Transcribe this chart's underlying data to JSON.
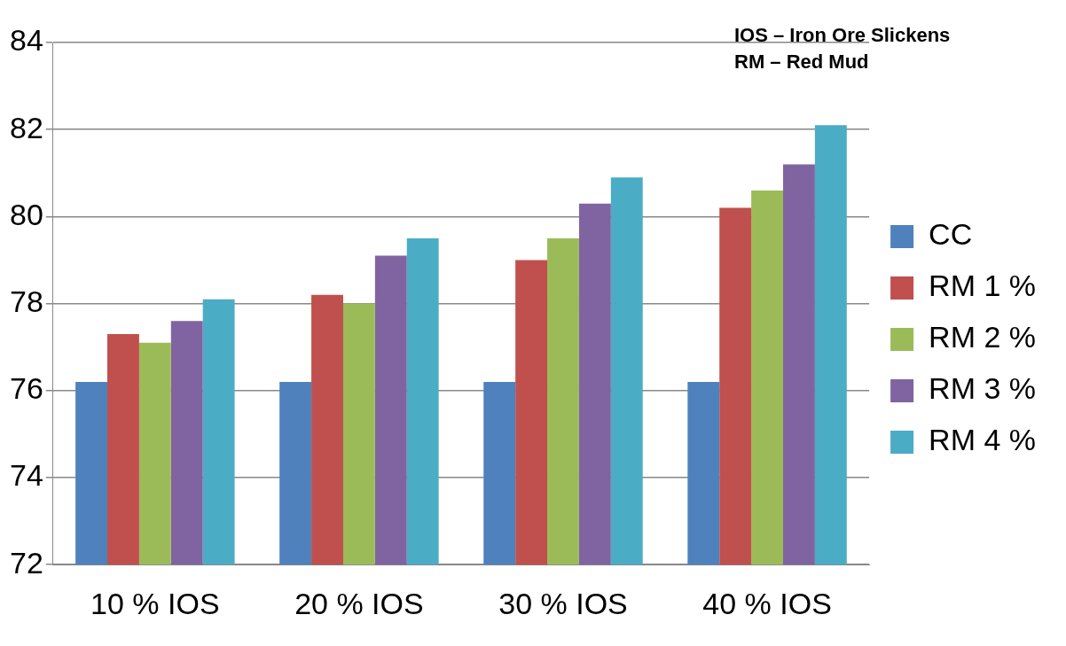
{
  "chart_data": {
    "type": "bar",
    "categories": [
      "10 % IOS",
      "20 % IOS",
      "30 % IOS",
      "40 % IOS"
    ],
    "series": [
      {
        "name": "CC",
        "color": "#4f81bd",
        "values": [
          76.2,
          76.2,
          76.2,
          76.2
        ]
      },
      {
        "name": "RM 1 %",
        "color": "#c0504d",
        "values": [
          77.3,
          78.2,
          79.0,
          80.2
        ]
      },
      {
        "name": "RM 2 %",
        "color": "#9bbb59",
        "values": [
          77.1,
          78.0,
          79.5,
          80.6
        ]
      },
      {
        "name": "RM 3 %",
        "color": "#8064a2",
        "values": [
          77.6,
          79.1,
          80.3,
          81.2
        ]
      },
      {
        "name": "RM 4 %",
        "color": "#4bacc6",
        "values": [
          78.1,
          79.5,
          80.9,
          82.1
        ]
      }
    ],
    "ylim": [
      72,
      84
    ],
    "yticks": [
      72,
      74,
      76,
      78,
      80,
      82,
      84
    ],
    "grid": "y",
    "legend": "right",
    "annotations": [
      "IOS – Iron Ore Slickens",
      "RM – Red Mud"
    ]
  }
}
